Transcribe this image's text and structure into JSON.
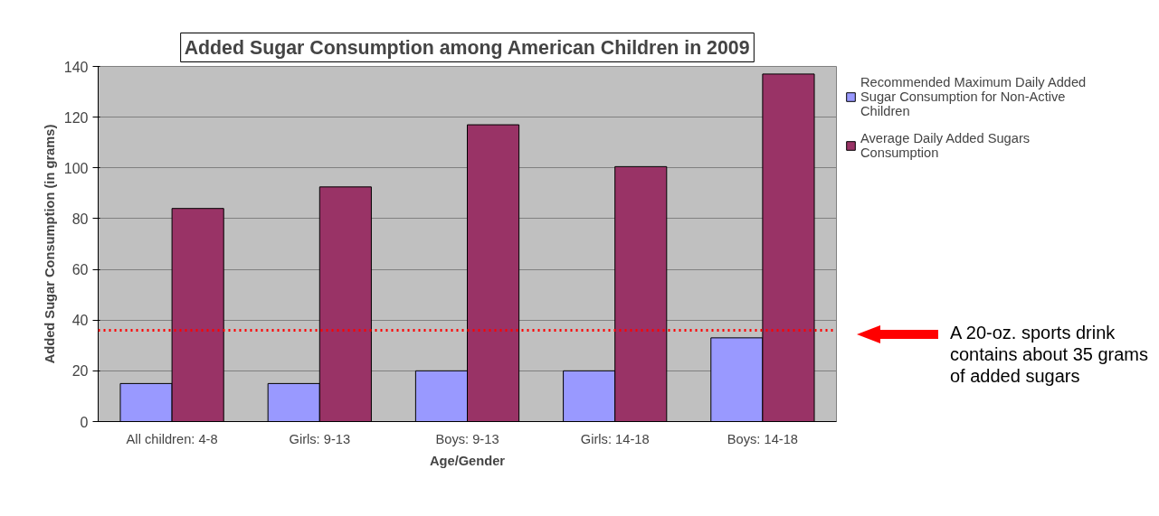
{
  "chart_data": {
    "type": "bar",
    "title": "Added Sugar Consumption among American Children in 2009",
    "xlabel": "Age/Gender",
    "ylabel": "Added Sugar Consumption (in grams)",
    "categories": [
      "All children: 4-8",
      "Girls: 9-13",
      "Boys: 9-13",
      "Girls: 14-18",
      "Boys: 14-18"
    ],
    "series": [
      {
        "name": "Recommended Maximum Daily Added Sugar Consumption for Non-Active Children",
        "color": "#9999ff",
        "values": [
          15,
          15,
          20,
          20,
          33
        ]
      },
      {
        "name": "Average Daily Added Sugars Consumption",
        "color": "#993366",
        "values": [
          84,
          92.5,
          117,
          100.5,
          137
        ]
      }
    ],
    "ylim": [
      0,
      140
    ],
    "yticks": [
      0,
      20,
      40,
      60,
      80,
      100,
      120,
      140
    ],
    "grid": "y",
    "legend": "top right",
    "ref_lines": [
      {
        "axis": "y",
        "value": 36,
        "label": null,
        "color": "#ff0000",
        "line_style": "dotted"
      }
    ],
    "annotations": [
      "A 20-oz. sports drink contains about 35 grams of added sugars"
    ]
  }
}
